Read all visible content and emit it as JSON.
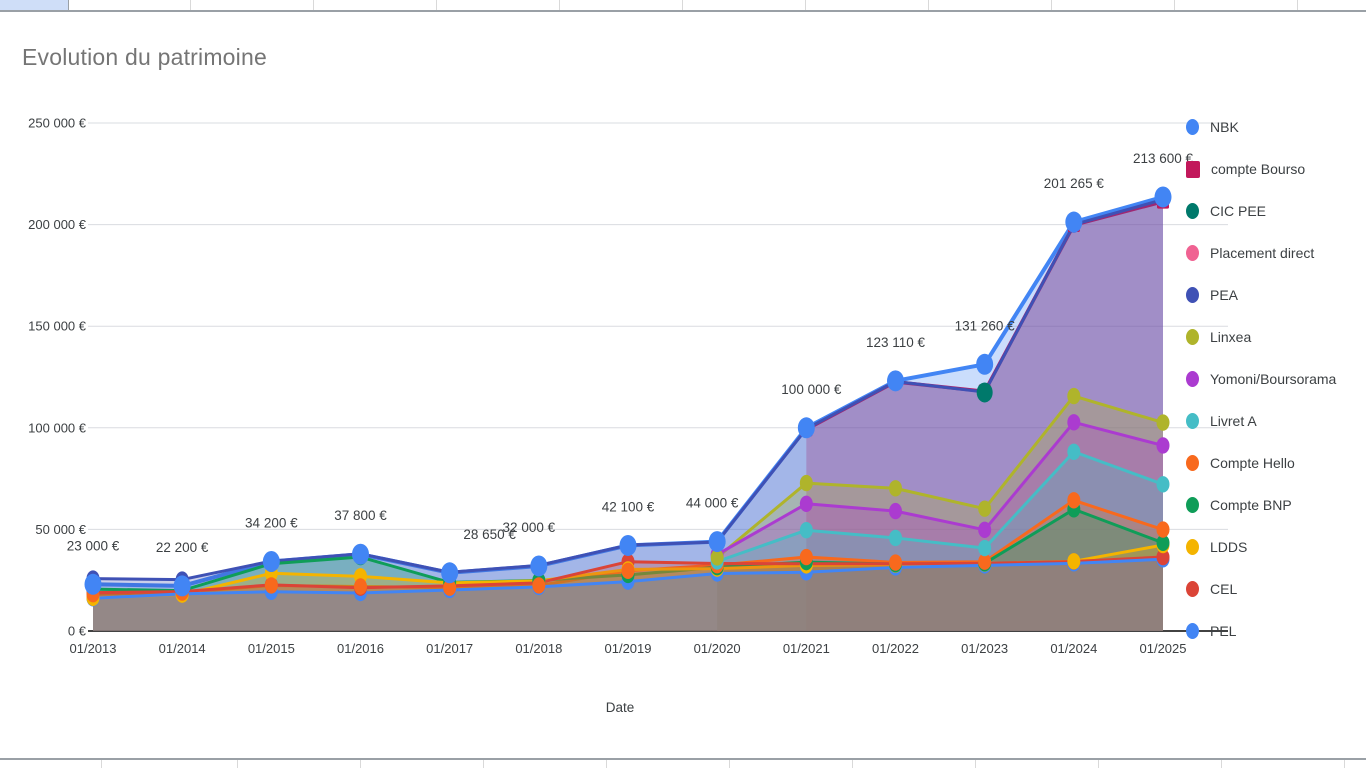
{
  "chart": {
    "title": "Evolution du patrimoine",
    "x_axis_title": "Date"
  },
  "chart_data": {
    "type": "area",
    "title": "Evolution du patrimoine",
    "xlabel": "Date",
    "ylabel": "",
    "ylim": [
      0,
      250000
    ],
    "y_tick_step": 50000,
    "y_tick_labels": [
      "0 €",
      "50 000 €",
      "100 000 €",
      "150 000 €",
      "200 000 €",
      "250 000 €"
    ],
    "grid": true,
    "legend_position": "right",
    "x": [
      "01/2013",
      "01/2014",
      "01/2015",
      "01/2016",
      "01/2017",
      "01/2018",
      "01/2019",
      "01/2020",
      "01/2021",
      "01/2022",
      "01/2023",
      "01/2024",
      "01/2025"
    ],
    "series": [
      {
        "name": "NBK",
        "color": "#4285F4",
        "marker": "circle",
        "values": [
          23000,
          22200,
          34200,
          37800,
          28650,
          32000,
          42100,
          44000,
          100000,
          123110,
          131260,
          201265,
          213600
        ],
        "point_labels": [
          "23 000 €",
          "22 200 €",
          "34 200 €",
          "37 800 €",
          "28 650 €",
          "32 000 €",
          "42 100 €",
          "44 000 €",
          "100 000 €",
          "123 110 €",
          "131 260 €",
          "201 265 €",
          "213 600 €"
        ],
        "label_dx": [
          0,
          0,
          0,
          0,
          40,
          -10,
          0,
          -5,
          5,
          0,
          0,
          0,
          0
        ]
      },
      {
        "name": "compte Bourso",
        "color": "#C2185B",
        "marker": "square",
        "values": [
          null,
          null,
          null,
          null,
          null,
          null,
          null,
          null,
          99200,
          122600,
          117900,
          199800,
          211300
        ]
      },
      {
        "name": "CIC PEE",
        "color": "#00796B",
        "marker": "circle",
        "values": [
          null,
          null,
          null,
          null,
          null,
          null,
          null,
          null,
          null,
          null,
          117400,
          null,
          null
        ]
      },
      {
        "name": "Placement direct",
        "color": "#F06292",
        "marker": "circle",
        "values": [
          null,
          null,
          null,
          null,
          null,
          null,
          null,
          null,
          null,
          null,
          null,
          null,
          null
        ]
      },
      {
        "name": "PEA",
        "color": "#3F51B5",
        "marker": "circle",
        "values": [
          25800,
          25300,
          34400,
          38000,
          28900,
          32300,
          42300,
          43800,
          99500,
          122800,
          117600,
          200000,
          212300
        ]
      },
      {
        "name": "Linxea",
        "color": "#AFB42B",
        "marker": "circle",
        "values": [
          null,
          null,
          null,
          null,
          null,
          null,
          null,
          36200,
          72800,
          70200,
          60200,
          115600,
          102600
        ]
      },
      {
        "name": "Yomoni/Boursorama",
        "color": "#AB3BD0",
        "marker": "circle",
        "values": [
          null,
          null,
          null,
          null,
          null,
          null,
          null,
          37600,
          62600,
          59000,
          49800,
          102700,
          91300
        ]
      },
      {
        "name": "Livret A",
        "color": "#45BDC6",
        "marker": "circle",
        "values": [
          null,
          null,
          null,
          null,
          null,
          null,
          null,
          34200,
          49600,
          45800,
          40800,
          88200,
          72200
        ]
      },
      {
        "name": "Compte Hello",
        "color": "#F8691D",
        "marker": "circle",
        "values": [
          18100,
          18900,
          22400,
          21900,
          21300,
          22400,
          29600,
          32400,
          36400,
          33700,
          34100,
          64300,
          49900
        ]
      },
      {
        "name": "Compte BNP",
        "color": "#0F9D58",
        "marker": "circle",
        "values": [
          20600,
          19900,
          33100,
          36400,
          23900,
          24900,
          27600,
          31400,
          33900,
          32900,
          33300,
          59900,
          43400
        ]
      },
      {
        "name": "LDDS",
        "color": "#F4B400",
        "marker": "circle",
        "values": [
          16300,
          17900,
          28400,
          26900,
          23700,
          24700,
          30300,
          30700,
          32300,
          32700,
          33200,
          34300,
          42300
        ]
      },
      {
        "name": "CEL",
        "color": "#DB4437",
        "marker": "circle",
        "values": [
          18900,
          19400,
          22700,
          21300,
          22200,
          23700,
          34100,
          33200,
          33100,
          33100,
          33300,
          34200,
          36400
        ]
      },
      {
        "name": "PEL",
        "color": "#4285F4",
        "marker": "circle",
        "values": [
          16100,
          18300,
          19300,
          18700,
          20200,
          21700,
          24300,
          28300,
          28900,
          31300,
          32300,
          33300,
          35300
        ]
      }
    ]
  },
  "legend": {
    "items": [
      {
        "label": "NBK",
        "color": "#4285F4",
        "shape": "circle"
      },
      {
        "label": "compte Bourso",
        "color": "#C2185B",
        "shape": "square"
      },
      {
        "label": "CIC PEE",
        "color": "#00796B",
        "shape": "circle"
      },
      {
        "label": "Placement direct",
        "color": "#F06292",
        "shape": "circle"
      },
      {
        "label": "PEA",
        "color": "#3F51B5",
        "shape": "circle"
      },
      {
        "label": "Linxea",
        "color": "#AFB42B",
        "shape": "circle"
      },
      {
        "label": "Yomoni/Boursorama",
        "color": "#AB3BD0",
        "shape": "circle"
      },
      {
        "label": "Livret A",
        "color": "#45BDC6",
        "shape": "circle"
      },
      {
        "label": "Compte Hello",
        "color": "#F8691D",
        "shape": "circle"
      },
      {
        "label": "Compte BNP",
        "color": "#0F9D58",
        "shape": "circle"
      },
      {
        "label": "LDDS",
        "color": "#F4B400",
        "shape": "circle"
      },
      {
        "label": "CEL",
        "color": "#DB4437",
        "shape": "circle"
      },
      {
        "label": "PEL",
        "color": "#4285F4",
        "shape": "circle"
      }
    ]
  }
}
